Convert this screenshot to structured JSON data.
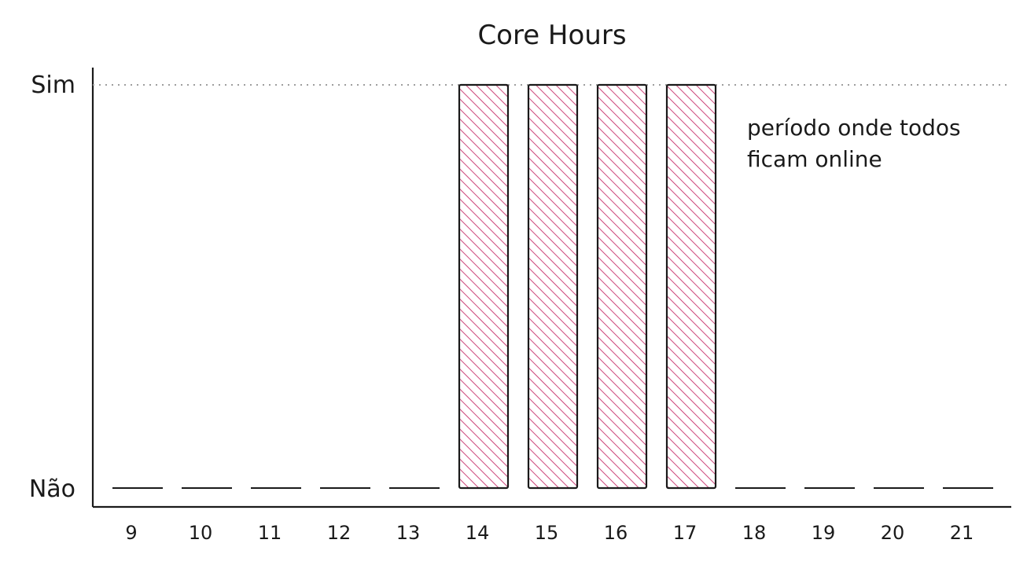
{
  "chart_data": {
    "type": "bar",
    "title": "Core Hours",
    "xlabel": "",
    "ylabel": "",
    "categories": [
      "9",
      "10",
      "11",
      "12",
      "13",
      "14",
      "15",
      "16",
      "17",
      "18",
      "19",
      "20",
      "21"
    ],
    "values": [
      0,
      0,
      0,
      0,
      0,
      1,
      1,
      1,
      1,
      0,
      0,
      0,
      0
    ],
    "y_tick_labels": [
      "Não",
      "Sim"
    ],
    "ylim": [
      0,
      1
    ],
    "annotation": [
      "período onde todos",
      "ficam online"
    ],
    "reference_line": {
      "y": 1,
      "style": "dotted"
    },
    "grid": false,
    "bar_color": "#c2185b",
    "bar_fill": "hatched",
    "axis_color": "#1a1a1a"
  }
}
